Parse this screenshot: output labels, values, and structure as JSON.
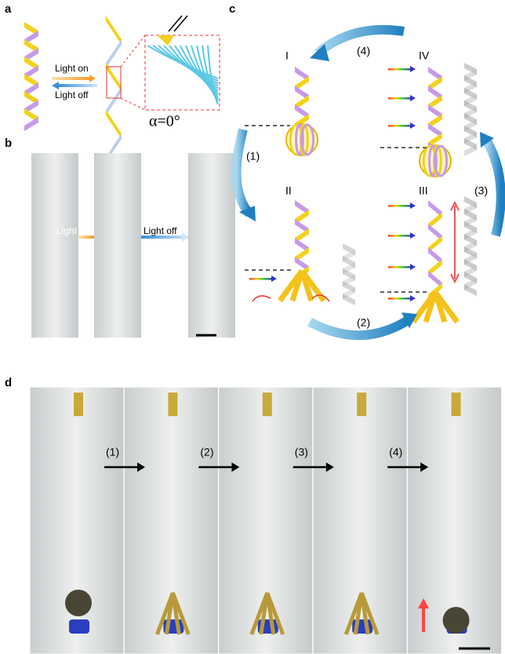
{
  "panels": {
    "a": {
      "label": "a",
      "arrow_top": "Light on",
      "arrow_bottom": "Light off",
      "angle": "α=0°"
    },
    "b": {
      "label": "b",
      "arrow_1": "Light on",
      "arrow_2": "Light off"
    },
    "c": {
      "label": "c",
      "states": [
        "I",
        "II",
        "III",
        "IV"
      ],
      "steps": [
        "(1)",
        "(2)",
        "(3)",
        "(4)"
      ]
    },
    "d": {
      "label": "d",
      "steps": [
        "(1)",
        "(2)",
        "(3)",
        "(4)"
      ]
    }
  }
}
